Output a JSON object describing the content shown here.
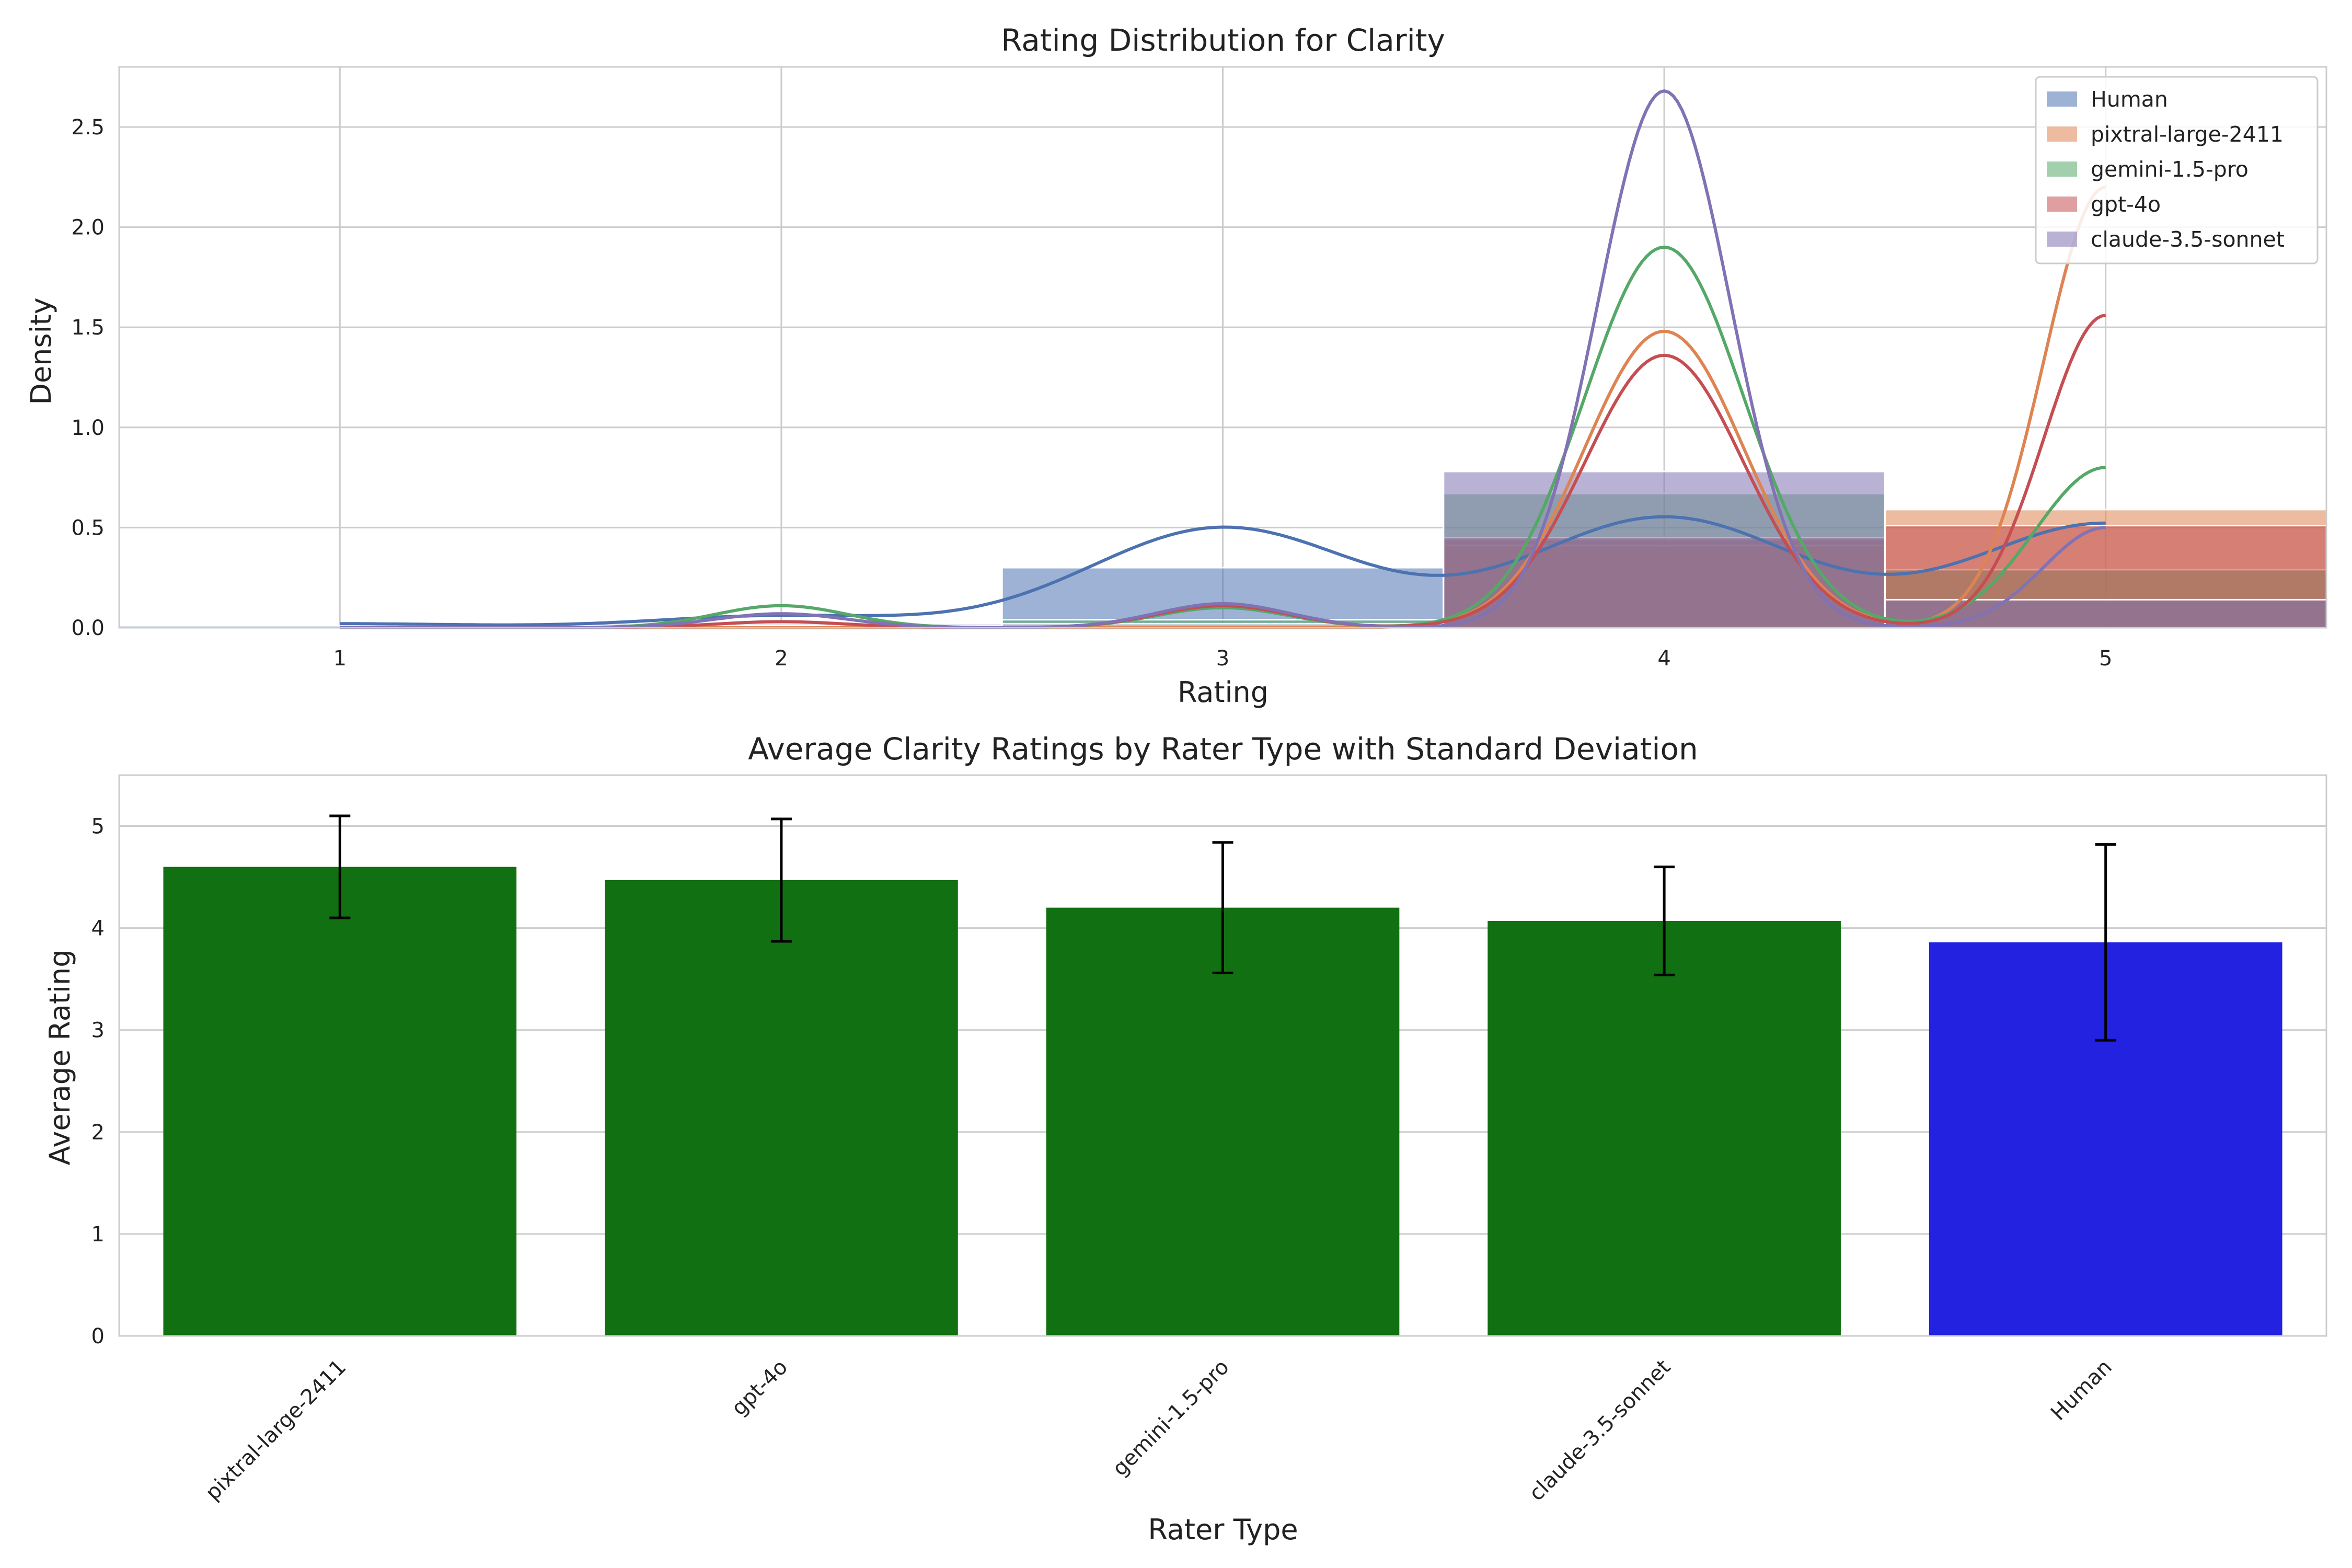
{
  "chart_data": [
    {
      "type": "histogram",
      "title": "Rating Distribution for Clarity",
      "xlabel": "Rating",
      "ylabel": "Density",
      "xlim": [
        0.5,
        5.5
      ],
      "ylim": [
        0,
        2.8
      ],
      "xticks": [
        "1",
        "2",
        "3",
        "4",
        "5"
      ],
      "yticks": [
        "0.0",
        "0.5",
        "1.0",
        "1.5",
        "2.0",
        "2.5"
      ],
      "legend_position": "top-right",
      "bins": [
        1,
        2,
        3,
        4,
        5
      ],
      "series": [
        {
          "name": "Human",
          "color": "#4c72b0",
          "hist": [
            0.01,
            0.02,
            0.3,
            0.44,
            0.15
          ],
          "kde": [
            {
              "mu": 1.0,
              "sigma": 0.3,
              "w": 0.02
            },
            {
              "mu": 2.0,
              "sigma": 0.28,
              "w": 0.06
            },
            {
              "mu": 3.0,
              "sigma": 0.3,
              "w": 0.5
            },
            {
              "mu": 4.0,
              "sigma": 0.3,
              "w": 0.55
            },
            {
              "mu": 5.0,
              "sigma": 0.3,
              "w": 0.52
            }
          ]
        },
        {
          "name": "pixtral-large-2411",
          "color": "#dd8452",
          "hist": [
            0,
            0,
            0.01,
            0.41,
            0.59
          ],
          "kde": [
            {
              "mu": 4.0,
              "sigma": 0.18,
              "w": 1.48
            },
            {
              "mu": 5.0,
              "sigma": 0.14,
              "w": 2.2
            }
          ]
        },
        {
          "name": "gemini-1.5-pro",
          "color": "#55a868",
          "hist": [
            0,
            0.01,
            0.04,
            0.67,
            0.29
          ],
          "kde": [
            {
              "mu": 2.0,
              "sigma": 0.15,
              "w": 0.11
            },
            {
              "mu": 3.0,
              "sigma": 0.15,
              "w": 0.1
            },
            {
              "mu": 4.0,
              "sigma": 0.18,
              "w": 1.9
            },
            {
              "mu": 5.0,
              "sigma": 0.16,
              "w": 0.8
            }
          ]
        },
        {
          "name": "gpt-4o",
          "color": "#c44e52",
          "hist": [
            0,
            0.01,
            0.01,
            0.45,
            0.51
          ],
          "kde": [
            {
              "mu": 2.0,
              "sigma": 0.15,
              "w": 0.03
            },
            {
              "mu": 3.0,
              "sigma": 0.15,
              "w": 0.11
            },
            {
              "mu": 4.0,
              "sigma": 0.18,
              "w": 1.36
            },
            {
              "mu": 5.0,
              "sigma": 0.14,
              "w": 1.56
            }
          ]
        },
        {
          "name": "claude-3.5-sonnet",
          "color": "#8172b3",
          "hist": [
            0,
            0.01,
            0.02,
            0.78,
            0.14
          ],
          "kde": [
            {
              "mu": 2.0,
              "sigma": 0.15,
              "w": 0.07
            },
            {
              "mu": 3.0,
              "sigma": 0.15,
              "w": 0.12
            },
            {
              "mu": 4.0,
              "sigma": 0.15,
              "w": 2.68
            },
            {
              "mu": 5.0,
              "sigma": 0.14,
              "w": 0.5
            }
          ]
        }
      ]
    },
    {
      "type": "bar",
      "title": "Average Clarity Ratings by Rater Type with Standard Deviation",
      "xlabel": "Rater Type",
      "ylabel": "Average Rating",
      "ylim": [
        0,
        5.5
      ],
      "yticks": [
        "0",
        "1",
        "2",
        "3",
        "4",
        "5"
      ],
      "categories": [
        "pixtral-large-2411",
        "gpt-4o",
        "gemini-1.5-pro",
        "claude-3.5-sonnet",
        "Human"
      ],
      "values": [
        4.6,
        4.47,
        4.2,
        4.07,
        3.86
      ],
      "std": [
        0.5,
        0.6,
        0.64,
        0.53,
        0.96
      ],
      "colors": [
        "#117011",
        "#117011",
        "#117011",
        "#117011",
        "#2222e0"
      ]
    }
  ]
}
